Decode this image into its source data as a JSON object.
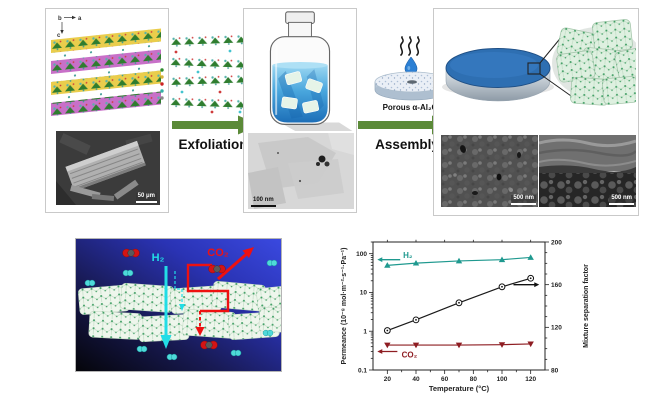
{
  "panel_synthesis": {
    "axis_b": "b",
    "axis_a": "a",
    "axis_c": "c",
    "sem_scale_bar": "50 μm"
  },
  "steps": {
    "exfoliation": "Exfoliation",
    "assembly": "Assembly",
    "support_label": "Porous α-Al₂O₃"
  },
  "panel_dispersion": {
    "tem_scale_bar": "100 nm"
  },
  "panel_membrane": {
    "sem_left_scale_bar": "500 nm",
    "sem_right_scale_bar": "500 nm"
  },
  "schematic": {
    "h2_label": "H₂",
    "co2_label": "CO₂"
  },
  "chart_data": {
    "type": "line",
    "xlabel": "Temperature (°C)",
    "ylabel_left": "Permeance (10⁻⁸ mol·m⁻²·s⁻¹·Pa⁻¹)",
    "ylabel_right": "Mixture separation factor",
    "xlim": [
      10,
      130
    ],
    "x_major_ticks": [
      20,
      40,
      60,
      80,
      100,
      120
    ],
    "left_scale": "log",
    "ylim_left": [
      0.1,
      200
    ],
    "left_major_ticks": [
      0.1,
      1,
      10,
      100
    ],
    "ylim_right": [
      80,
      200
    ],
    "right_major_ticks": [
      80,
      120,
      160,
      200
    ],
    "grid": false,
    "legend_position": "in-plot annotations",
    "series": [
      {
        "name": "H₂ permeance",
        "axis": "left",
        "color": "#1f998f",
        "marker": "triangle-up",
        "x": [
          20,
          40,
          70,
          100,
          120
        ],
        "values": [
          50,
          57,
          65,
          70,
          80
        ]
      },
      {
        "name": "CO₂ permeance",
        "axis": "left",
        "color": "#8e1d22",
        "marker": "triangle-down",
        "x": [
          20,
          40,
          70,
          100,
          120
        ],
        "values": [
          0.44,
          0.44,
          0.44,
          0.45,
          0.47
        ]
      },
      {
        "name": "H₂/CO₂ mixture separation factor",
        "axis": "right",
        "color": "#1a1a1a",
        "marker": "open-circle",
        "x": [
          20,
          40,
          70,
          100,
          120
        ],
        "values": [
          117,
          127,
          143,
          158,
          166
        ]
      }
    ],
    "annotations": {
      "h2": {
        "text": "H₂",
        "color": "#1f998f",
        "arrow": "points-left-to-left-axis"
      },
      "co2": {
        "text": "CO₂",
        "color": "#8e1d22",
        "arrow": "points-left-to-left-axis"
      },
      "separation": {
        "arrow": "points-right-to-right-axis",
        "color": "#1a1a1a",
        "at_value": 160
      }
    }
  },
  "colors": {
    "step_arrow_green": "#5b8a38",
    "membrane_blue": "#2e6fb2",
    "dispersion_blue": "#49a6dd",
    "schematic_background_blue": "#2a33b4",
    "h2_cyan": "#22dde6",
    "co2_red": "#ee1111",
    "h2_series_teal": "#1f998f",
    "co2_series_dark_red": "#8e1d22"
  }
}
